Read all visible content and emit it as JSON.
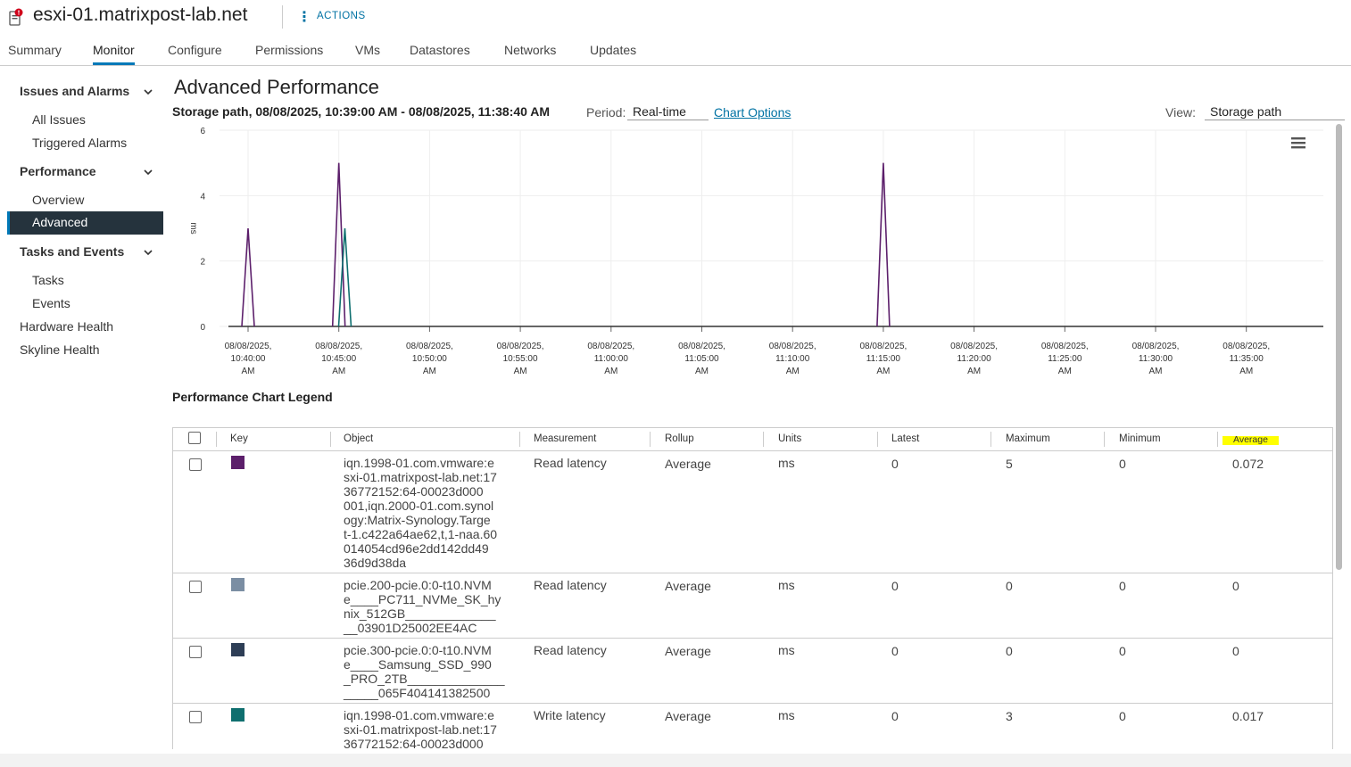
{
  "header": {
    "host_name": "esxi-01.matrixpost-lab.net",
    "actions_label": "ACTIONS"
  },
  "tabs": [
    "Summary",
    "Monitor",
    "Configure",
    "Permissions",
    "VMs",
    "Datastores",
    "Networks",
    "Updates"
  ],
  "active_tab": "Monitor",
  "sidebar": {
    "issues_group": "Issues and Alarms",
    "all_issues": "All Issues",
    "triggered_alarms": "Triggered Alarms",
    "performance_group": "Performance",
    "overview": "Overview",
    "advanced": "Advanced",
    "tasks_group": "Tasks and Events",
    "tasks": "Tasks",
    "events": "Events",
    "hardware_health": "Hardware Health",
    "skyline_health": "Skyline Health"
  },
  "main": {
    "title": "Advanced Performance",
    "subtitle": "Storage path, 08/08/2025, 10:39:00 AM - 08/08/2025, 11:38:40 AM",
    "period_label": "Period:",
    "period_value": "Real-time",
    "chart_options": "Chart Options",
    "view_label": "View:",
    "view_value": "Storage path",
    "legend_title": "Performance Chart Legend"
  },
  "chart_data": {
    "type": "line",
    "ylabel": "ms",
    "ylim": [
      0,
      6
    ],
    "yticks": [
      0,
      2,
      4,
      6
    ],
    "xticks": [
      [
        "08/08/2025,",
        "10:40:00",
        "AM"
      ],
      [
        "08/08/2025,",
        "10:45:00",
        "AM"
      ],
      [
        "08/08/2025,",
        "10:50:00",
        "AM"
      ],
      [
        "08/08/2025,",
        "10:55:00",
        "AM"
      ],
      [
        "08/08/2025,",
        "11:00:00",
        "AM"
      ],
      [
        "08/08/2025,",
        "11:05:00",
        "AM"
      ],
      [
        "08/08/2025,",
        "11:10:00",
        "AM"
      ],
      [
        "08/08/2025,",
        "11:15:00",
        "AM"
      ],
      [
        "08/08/2025,",
        "11:20:00",
        "AM"
      ],
      [
        "08/08/2025,",
        "11:25:00",
        "AM"
      ],
      [
        "08/08/2025,",
        "11:30:00",
        "AM"
      ],
      [
        "08/08/2025,",
        "11:35:00",
        "AM"
      ]
    ],
    "series": [
      {
        "color": "#5c1f6b",
        "peaks": [
          {
            "t": "10:40:00",
            "v": 3
          },
          {
            "t": "10:45:00",
            "v": 5
          },
          {
            "t": "11:15:00",
            "v": 5
          }
        ]
      },
      {
        "color": "#0f6f6f",
        "peaks": [
          {
            "t": "10:45:20",
            "v": 3
          }
        ]
      }
    ]
  },
  "legend_table": {
    "columns": [
      "Key",
      "Object",
      "Measurement",
      "Rollup",
      "Units",
      "Latest",
      "Maximum",
      "Minimum",
      "Average"
    ],
    "rows": [
      {
        "color": "#5c1f6b",
        "object": "iqn.1998-01.com.vmware:e\nsxi-01.matrixpost-lab.net:17\n36772152:64-00023d000\n001,iqn.2000-01.com.synol\nogy:Matrix-Synology.Targe\nt-1.c422a64ae62,t,1-naa.60\n014054cd96e2dd142dd49\n36d9d38da",
        "measurement": "Read latency",
        "rollup": "Average",
        "units": "ms",
        "latest": "0",
        "maximum": "5",
        "minimum": "0",
        "average": "0.072"
      },
      {
        "color": "#7b8ea3",
        "object": "pcie.200-pcie.0:0-t10.NVM\ne____PC711_NVMe_SK_hy\nnix_512GB_____________\n__03901D25002EE4AC",
        "measurement": "Read latency",
        "rollup": "Average",
        "units": "ms",
        "latest": "0",
        "maximum": "0",
        "minimum": "0",
        "average": "0"
      },
      {
        "color": "#2e3e56",
        "object": "pcie.300-pcie.0:0-t10.NVM\ne____Samsung_SSD_990\n_PRO_2TB______________\n_____065F404141382500",
        "measurement": "Read latency",
        "rollup": "Average",
        "units": "ms",
        "latest": "0",
        "maximum": "0",
        "minimum": "0",
        "average": "0"
      },
      {
        "color": "#0f6f6f",
        "object": "iqn.1998-01.com.vmware:e\nsxi-01.matrixpost-lab.net:17\n36772152:64-00023d000",
        "measurement": "Write latency",
        "rollup": "Average",
        "units": "ms",
        "latest": "0",
        "maximum": "3",
        "minimum": "0",
        "average": "0.017"
      }
    ]
  }
}
